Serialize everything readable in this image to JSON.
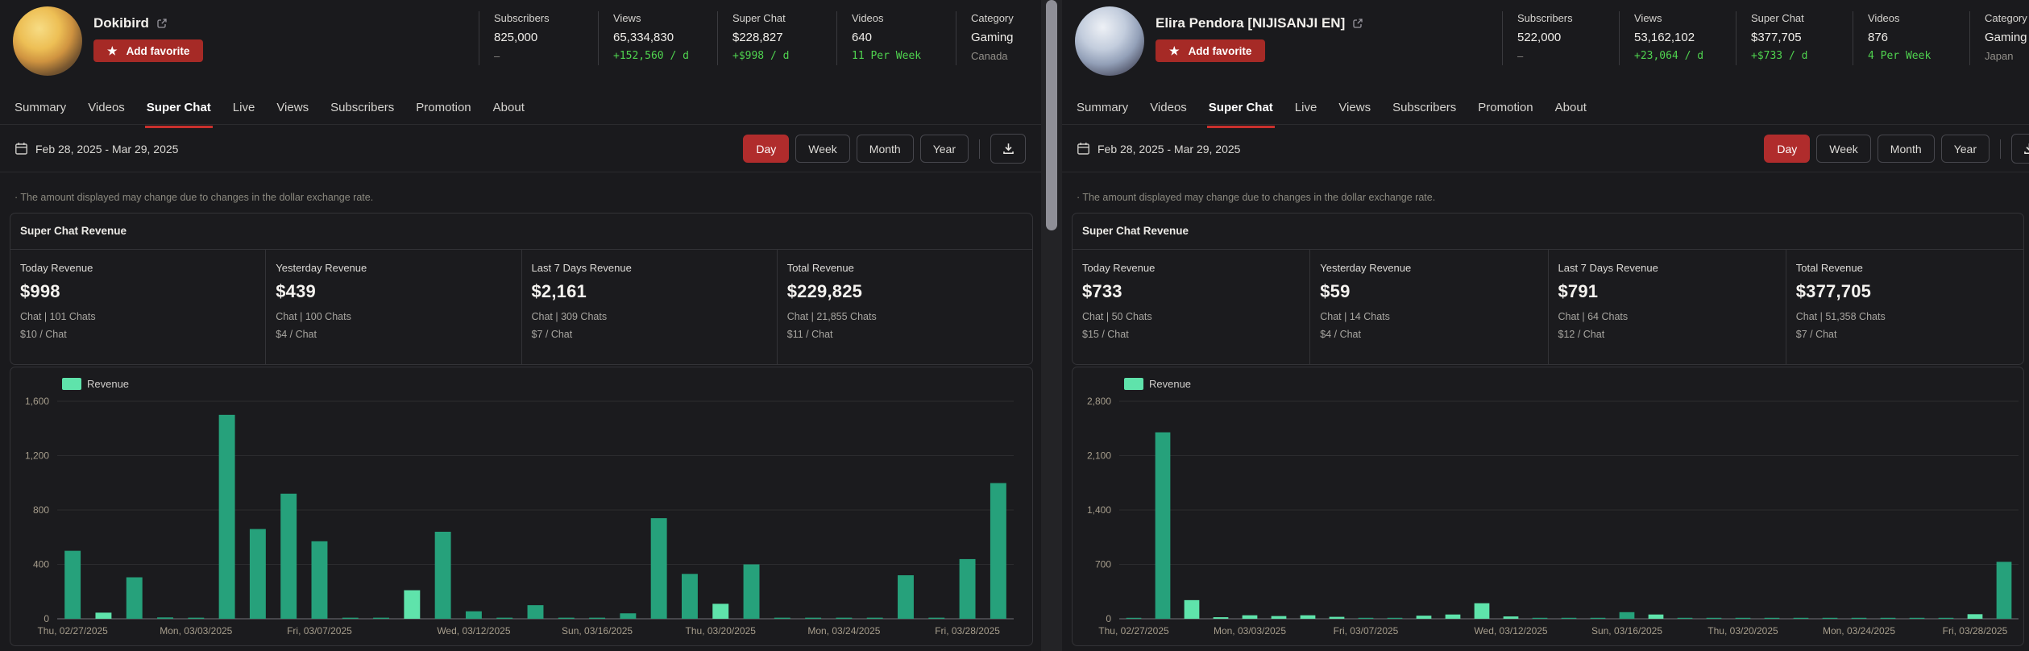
{
  "colors": {
    "bar_dark": "#26a17b",
    "bar_light": "#5fe3ab",
    "accent_red": "#b02c2c",
    "favorite_red": "#a62a26",
    "tab_underline_red": "#c9302d",
    "delta_green": "#4fd24f",
    "grid_line": "#2c2c2f",
    "axis_line": "#55555a",
    "tick_text": "#a69d8c"
  },
  "icons": {
    "favorite_star": "★",
    "note_bullet": "·"
  },
  "panels": [
    {
      "header": {
        "name": "Dokibird",
        "favorite_label": "Add favorite"
      },
      "stats": [
        {
          "label": "Subscribers",
          "value": "825,000",
          "delta": "–",
          "delta_style": "muted"
        },
        {
          "label": "Views",
          "value": "65,334,830",
          "delta": "+152,560 / d",
          "delta_style": "green"
        },
        {
          "label": "Super Chat",
          "value": "$228,827",
          "delta": "+$998 / d",
          "delta_style": "green"
        },
        {
          "label": "Videos",
          "value": "640",
          "delta": "11 Per Week",
          "delta_style": "green"
        },
        {
          "label": "Category",
          "value": "Gaming",
          "delta": "Canada",
          "delta_style": "gray"
        }
      ],
      "tabs": [
        "Summary",
        "Videos",
        "Super Chat",
        "Live",
        "Views",
        "Subscribers",
        "Promotion",
        "About"
      ],
      "active_tab": "Super Chat",
      "date_range": "Feb 28, 2025 - Mar 29, 2025",
      "range_buttons": [
        "Day",
        "Week",
        "Month",
        "Year"
      ],
      "active_range": "Day",
      "note": "· The amount displayed may change due to changes in the dollar exchange rate.",
      "section_title": "Super Chat Revenue",
      "cards": [
        {
          "label": "Today Revenue",
          "value": "$998",
          "line2": "Chat | 101 Chats",
          "line3": "$10 / Chat"
        },
        {
          "label": "Yesterday Revenue",
          "value": "$439",
          "line2": "Chat | 100 Chats",
          "line3": "$4 / Chat"
        },
        {
          "label": "Last 7 Days Revenue",
          "value": "$2,161",
          "line2": "Chat | 309 Chats",
          "line3": "$7 / Chat"
        },
        {
          "label": "Total Revenue",
          "value": "$229,825",
          "line2": "Chat | 21,855 Chats",
          "line3": "$11 / Chat"
        }
      ],
      "chart_data": {
        "type": "bar",
        "legend": "Revenue",
        "legend_position": "top-left",
        "grid": true,
        "ylim": [
          0,
          1600
        ],
        "yticks": [
          0,
          400,
          800,
          1200,
          1600
        ],
        "ytick_labels": [
          "0",
          "400",
          "800",
          "1,200",
          "1,600"
        ],
        "categories": [
          "02/27/2025",
          "02/28/2025",
          "03/01/2025",
          "03/02/2025",
          "03/03/2025",
          "03/04/2025",
          "03/05/2025",
          "03/06/2025",
          "03/07/2025",
          "03/08/2025",
          "03/09/2025",
          "03/10/2025",
          "03/11/2025",
          "03/12/2025",
          "03/13/2025",
          "03/14/2025",
          "03/15/2025",
          "03/16/2025",
          "03/17/2025",
          "03/18/2025",
          "03/19/2025",
          "03/20/2025",
          "03/21/2025",
          "03/22/2025",
          "03/23/2025",
          "03/24/2025",
          "03/25/2025",
          "03/26/2025",
          "03/27/2025",
          "03/28/2025",
          "03/29/2025"
        ],
        "values": [
          500,
          45,
          305,
          10,
          8,
          1500,
          660,
          920,
          570,
          8,
          8,
          210,
          640,
          55,
          8,
          100,
          8,
          8,
          40,
          740,
          330,
          110,
          400,
          8,
          8,
          8,
          8,
          320,
          8,
          439,
          998
        ],
        "light_indices": [
          1,
          11,
          21
        ],
        "xticks": [
          {
            "index": 0,
            "label": "Thu, 02/27/2025"
          },
          {
            "index": 4,
            "label": "Mon, 03/03/2025"
          },
          {
            "index": 8,
            "label": "Fri, 03/07/2025"
          },
          {
            "index": 13,
            "label": "Wed, 03/12/2025"
          },
          {
            "index": 17,
            "label": "Sun, 03/16/2025"
          },
          {
            "index": 21,
            "label": "Thu, 03/20/2025"
          },
          {
            "index": 25,
            "label": "Mon, 03/24/2025"
          },
          {
            "index": 29,
            "label": "Fri, 03/28/2025"
          }
        ]
      }
    },
    {
      "header": {
        "name": "Elira Pendora [NIJISANJI EN]",
        "favorite_label": "Add favorite"
      },
      "stats": [
        {
          "label": "Subscribers",
          "value": "522,000",
          "delta": "–",
          "delta_style": "muted"
        },
        {
          "label": "Views",
          "value": "53,162,102",
          "delta": "+23,064 / d",
          "delta_style": "green"
        },
        {
          "label": "Super Chat",
          "value": "$377,705",
          "delta": "+$733 / d",
          "delta_style": "green"
        },
        {
          "label": "Videos",
          "value": "876",
          "delta": "4 Per Week",
          "delta_style": "green"
        },
        {
          "label": "Category",
          "value": "Gaming",
          "delta": "Japan",
          "delta_style": "gray"
        }
      ],
      "tabs": [
        "Summary",
        "Videos",
        "Super Chat",
        "Live",
        "Views",
        "Subscribers",
        "Promotion",
        "About"
      ],
      "active_tab": "Super Chat",
      "date_range": "Feb 28, 2025 - Mar 29, 2025",
      "range_buttons": [
        "Day",
        "Week",
        "Month",
        "Year"
      ],
      "active_range": "Day",
      "note": "· The amount displayed may change due to changes in the dollar exchange rate.",
      "section_title": "Super Chat Revenue",
      "cards": [
        {
          "label": "Today Revenue",
          "value": "$733",
          "line2": "Chat | 50 Chats",
          "line3": "$15 / Chat"
        },
        {
          "label": "Yesterday Revenue",
          "value": "$59",
          "line2": "Chat | 14 Chats",
          "line3": "$4 / Chat"
        },
        {
          "label": "Last 7 Days Revenue",
          "value": "$791",
          "line2": "Chat | 64 Chats",
          "line3": "$12 / Chat"
        },
        {
          "label": "Total Revenue",
          "value": "$377,705",
          "line2": "Chat | 51,358 Chats",
          "line3": "$7 / Chat"
        }
      ],
      "chart_data": {
        "type": "bar",
        "legend": "Revenue",
        "legend_position": "top-left",
        "grid": true,
        "ylim": [
          0,
          2800
        ],
        "yticks": [
          0,
          700,
          1400,
          2100,
          2800
        ],
        "ytick_labels": [
          "0",
          "700",
          "1,400",
          "2,100",
          "2,800"
        ],
        "categories": [
          "02/27/2025",
          "02/28/2025",
          "03/01/2025",
          "03/02/2025",
          "03/03/2025",
          "03/04/2025",
          "03/05/2025",
          "03/06/2025",
          "03/07/2025",
          "03/08/2025",
          "03/09/2025",
          "03/10/2025",
          "03/11/2025",
          "03/12/2025",
          "03/13/2025",
          "03/14/2025",
          "03/15/2025",
          "03/16/2025",
          "03/17/2025",
          "03/18/2025",
          "03/19/2025",
          "03/20/2025",
          "03/21/2025",
          "03/22/2025",
          "03/23/2025",
          "03/24/2025",
          "03/25/2025",
          "03/26/2025",
          "03/27/2025",
          "03/28/2025",
          "03/29/2025"
        ],
        "values": [
          8,
          2400,
          240,
          20,
          45,
          35,
          45,
          25,
          8,
          8,
          40,
          55,
          200,
          30,
          8,
          8,
          8,
          85,
          55,
          8,
          8,
          8,
          8,
          8,
          8,
          8,
          8,
          8,
          8,
          59,
          733
        ],
        "light_indices": [
          2,
          3,
          4,
          5,
          6,
          7,
          10,
          11,
          12,
          13,
          18,
          29
        ],
        "xticks": [
          {
            "index": 0,
            "label": "Thu, 02/27/2025"
          },
          {
            "index": 4,
            "label": "Mon, 03/03/2025"
          },
          {
            "index": 8,
            "label": "Fri, 03/07/2025"
          },
          {
            "index": 13,
            "label": "Wed, 03/12/2025"
          },
          {
            "index": 17,
            "label": "Sun, 03/16/2025"
          },
          {
            "index": 21,
            "label": "Thu, 03/20/2025"
          },
          {
            "index": 25,
            "label": "Mon, 03/24/2025"
          },
          {
            "index": 29,
            "label": "Fri, 03/28/2025"
          }
        ]
      }
    }
  ]
}
